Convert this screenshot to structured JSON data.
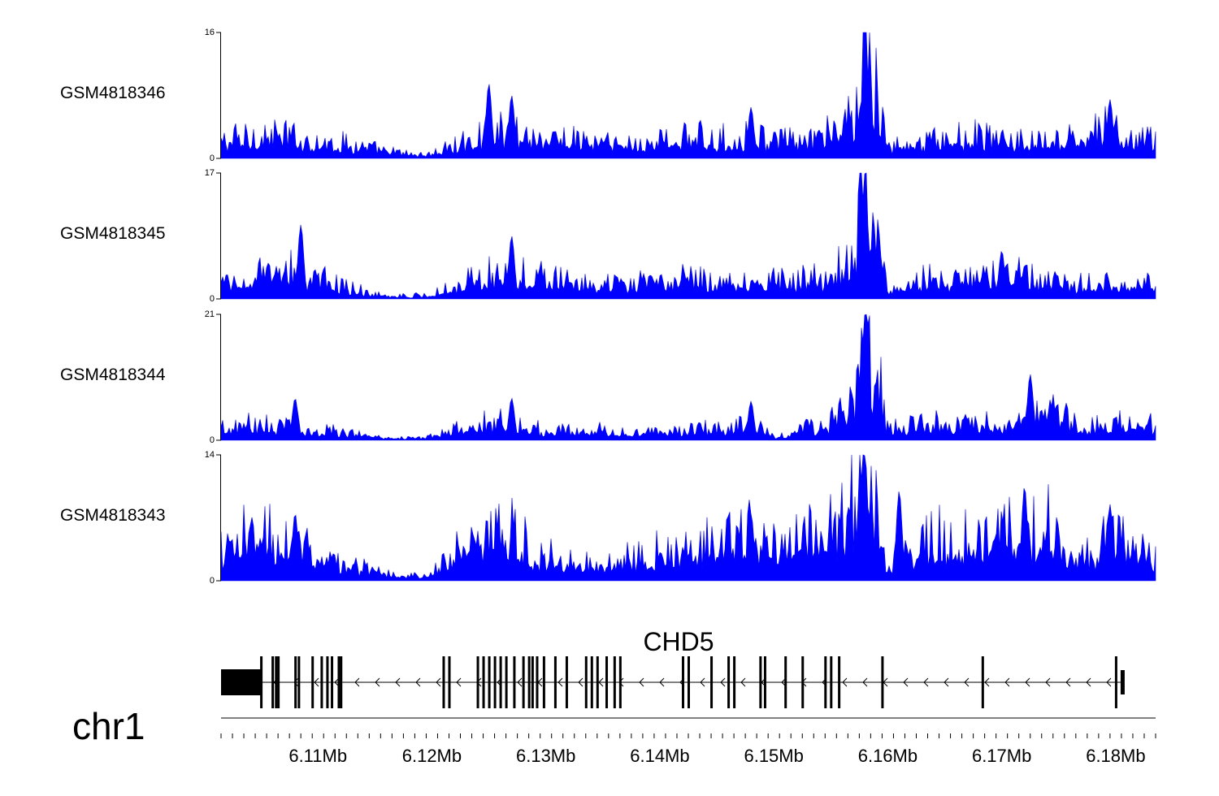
{
  "chart_data": {
    "type": "area",
    "chromosome": "chr1",
    "x_unit": "Mb",
    "xlim": [
      6.1015,
      6.1835
    ],
    "x_ticks": [
      6.11,
      6.12,
      6.13,
      6.14,
      6.15,
      6.16,
      6.17,
      6.18
    ],
    "x_tick_labels": [
      "6.11Mb",
      "6.12Mb",
      "6.13Mb",
      "6.14Mb",
      "6.15Mb",
      "6.16Mb",
      "6.17Mb",
      "6.18Mb"
    ],
    "color": "#0000ff",
    "grid": false,
    "legend": "none",
    "tracks": [
      {
        "name": "GSM4818346",
        "ylim": [
          0,
          16
        ],
        "x": [
          6.1015,
          6.105,
          6.108,
          6.11,
          6.113,
          6.116,
          6.1195,
          6.1225,
          6.125,
          6.127,
          6.13,
          6.134,
          6.137,
          6.14,
          6.142,
          6.146,
          6.148,
          6.15,
          6.154,
          6.157,
          6.158,
          6.16,
          6.164,
          6.168,
          6.171,
          6.174,
          6.177,
          6.1795,
          6.1815,
          6.1835
        ],
        "values": [
          2.5,
          3.5,
          3.0,
          2.5,
          2.0,
          1.0,
          0.5,
          2.0,
          3.5,
          4.0,
          3.0,
          2.5,
          2.0,
          2.5,
          3.0,
          2.5,
          3.5,
          2.5,
          2.5,
          6.0,
          16.0,
          1.5,
          2.5,
          3.0,
          2.5,
          2.0,
          3.0,
          4.0,
          2.5,
          3.0
        ],
        "peaks": [
          {
            "x": 6.125,
            "y": 9.5
          },
          {
            "x": 6.127,
            "y": 8.0
          },
          {
            "x": 6.148,
            "y": 6.5
          },
          {
            "x": 6.158,
            "y": 16.0
          },
          {
            "x": 6.1795,
            "y": 7.5
          }
        ]
      },
      {
        "name": "GSM4818345",
        "ylim": [
          0,
          17
        ],
        "x": [
          6.1015,
          6.105,
          6.108,
          6.11,
          6.113,
          6.116,
          6.1195,
          6.1225,
          6.125,
          6.127,
          6.13,
          6.134,
          6.137,
          6.14,
          6.142,
          6.146,
          6.148,
          6.15,
          6.154,
          6.157,
          6.158,
          6.16,
          6.164,
          6.168,
          6.171,
          6.174,
          6.177,
          6.1795,
          6.1815,
          6.1835
        ],
        "values": [
          2.5,
          3.5,
          4.0,
          3.0,
          1.5,
          0.5,
          0.5,
          2.5,
          3.5,
          4.0,
          3.0,
          2.0,
          2.0,
          2.5,
          3.0,
          2.5,
          3.0,
          3.0,
          3.0,
          5.5,
          17.0,
          2.0,
          3.0,
          3.0,
          3.5,
          2.5,
          2.0,
          2.5,
          1.5,
          3.5
        ],
        "peaks": [
          {
            "x": 6.1085,
            "y": 10.0
          },
          {
            "x": 6.127,
            "y": 8.5
          },
          {
            "x": 6.158,
            "y": 17.0
          },
          {
            "x": 6.17,
            "y": 6.5
          }
        ]
      },
      {
        "name": "GSM4818344",
        "ylim": [
          0,
          21
        ],
        "x": [
          6.1015,
          6.105,
          6.108,
          6.11,
          6.113,
          6.116,
          6.1195,
          6.1225,
          6.125,
          6.127,
          6.13,
          6.134,
          6.137,
          6.14,
          6.142,
          6.146,
          6.148,
          6.15,
          6.154,
          6.157,
          6.158,
          6.16,
          6.164,
          6.168,
          6.171,
          6.174,
          6.177,
          6.1795,
          6.1815,
          6.1835
        ],
        "values": [
          2.0,
          3.0,
          2.5,
          2.0,
          1.5,
          0.5,
          0.5,
          2.0,
          3.5,
          3.0,
          2.0,
          2.0,
          1.5,
          1.5,
          2.0,
          2.0,
          3.0,
          0.5,
          3.0,
          6.0,
          21.0,
          2.5,
          3.0,
          3.0,
          3.5,
          6.0,
          2.5,
          3.0,
          3.5,
          3.0
        ],
        "peaks": [
          {
            "x": 6.108,
            "y": 7.0
          },
          {
            "x": 6.127,
            "y": 7.0
          },
          {
            "x": 6.148,
            "y": 6.5
          },
          {
            "x": 6.158,
            "y": 21.0
          },
          {
            "x": 6.1725,
            "y": 11.0
          }
        ]
      },
      {
        "name": "GSM4818343",
        "ylim": [
          0,
          14
        ],
        "x": [
          6.1015,
          6.105,
          6.108,
          6.11,
          6.113,
          6.116,
          6.1195,
          6.1225,
          6.125,
          6.127,
          6.13,
          6.134,
          6.137,
          6.14,
          6.142,
          6.146,
          6.148,
          6.15,
          6.154,
          6.157,
          6.158,
          6.16,
          6.164,
          6.168,
          6.171,
          6.174,
          6.177,
          6.1795,
          6.1815,
          6.1835
        ],
        "values": [
          4.0,
          5.5,
          5.5,
          3.0,
          2.0,
          1.0,
          0.5,
          4.0,
          5.0,
          5.5,
          3.0,
          2.0,
          3.0,
          3.5,
          4.0,
          5.0,
          5.5,
          4.0,
          5.5,
          9.0,
          14.0,
          1.5,
          5.5,
          5.0,
          5.5,
          7.0,
          2.5,
          5.0,
          5.5,
          2.5
        ],
        "peaks": [
          {
            "x": 6.108,
            "y": 7.5
          },
          {
            "x": 6.148,
            "y": 7.5
          },
          {
            "x": 6.158,
            "y": 14.0
          },
          {
            "x": 6.161,
            "y": 10.0
          },
          {
            "x": 6.172,
            "y": 10.5
          },
          {
            "x": 6.1795,
            "y": 8.5
          }
        ]
      }
    ],
    "gene": {
      "name": "CHD5",
      "strand": "-",
      "start": 6.1015,
      "end": 6.1805,
      "thick_block": [
        6.1015,
        6.105
      ],
      "exons": [
        6.105,
        6.106,
        6.1063,
        6.1065,
        6.108,
        6.1083,
        6.1095,
        6.1103,
        6.1108,
        6.1112,
        6.1118,
        6.112,
        6.121,
        6.1215,
        6.124,
        6.1245,
        6.125,
        6.1255,
        6.126,
        6.1265,
        6.1272,
        6.128,
        6.1285,
        6.1288,
        6.1292,
        6.1298,
        6.1308,
        6.1318,
        6.1335,
        6.134,
        6.1345,
        6.1353,
        6.136,
        6.1365,
        6.142,
        6.1425,
        6.1445,
        6.146,
        6.1465,
        6.1488,
        6.1492,
        6.151,
        6.1525,
        6.1545,
        6.155,
        6.1557,
        6.1595,
        6.1683,
        6.18
      ]
    }
  },
  "labels": {
    "chromosome": "chr1",
    "gene": "CHD5"
  }
}
